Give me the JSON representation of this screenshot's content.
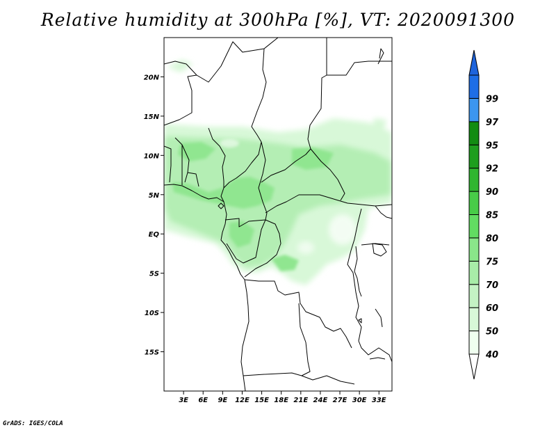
{
  "title": "Relative humidity at 300hPa [%], VT: 2020091300",
  "credit": "GrADS: IGES/COLA",
  "map": {
    "lat_range": [
      -20,
      25
    ],
    "lon_range": [
      0,
      35
    ],
    "lat_ticks": [
      {
        "value": 20,
        "label": "20N"
      },
      {
        "value": 15,
        "label": "15N"
      },
      {
        "value": 10,
        "label": "10N"
      },
      {
        "value": 5,
        "label": "5N"
      },
      {
        "value": 0,
        "label": "EQ"
      },
      {
        "value": -5,
        "label": "5S"
      },
      {
        "value": -10,
        "label": "10S"
      },
      {
        "value": -15,
        "label": "15S"
      }
    ],
    "lon_ticks": [
      {
        "value": 3,
        "label": "3E"
      },
      {
        "value": 6,
        "label": "6E"
      },
      {
        "value": 9,
        "label": "9E"
      },
      {
        "value": 12,
        "label": "12E"
      },
      {
        "value": 15,
        "label": "15E"
      },
      {
        "value": 18,
        "label": "18E"
      },
      {
        "value": 21,
        "label": "21E"
      },
      {
        "value": 24,
        "label": "24E"
      },
      {
        "value": 27,
        "label": "27E"
      },
      {
        "value": 30,
        "label": "30E"
      },
      {
        "value": 33,
        "label": "33E"
      }
    ]
  },
  "colorbar": {
    "levels": [
      {
        "label": "40",
        "color": "#f0fff0"
      },
      {
        "label": "50",
        "color": "#d8f8d8"
      },
      {
        "label": "60",
        "color": "#c4f2c4"
      },
      {
        "label": "70",
        "color": "#a8eca8"
      },
      {
        "label": "75",
        "color": "#8ae68a"
      },
      {
        "label": "80",
        "color": "#62dc62"
      },
      {
        "label": "85",
        "color": "#48cc48"
      },
      {
        "label": "90",
        "color": "#30b630"
      },
      {
        "label": "92",
        "color": "#1e9e1e"
      },
      {
        "label": "95",
        "color": "#128c12"
      },
      {
        "label": "97",
        "color": "#3c96f0"
      },
      {
        "label": "99",
        "color": "#1e6ee6"
      }
    ],
    "top_color": "#1e64dc",
    "bottom_color": "#ffffff"
  }
}
